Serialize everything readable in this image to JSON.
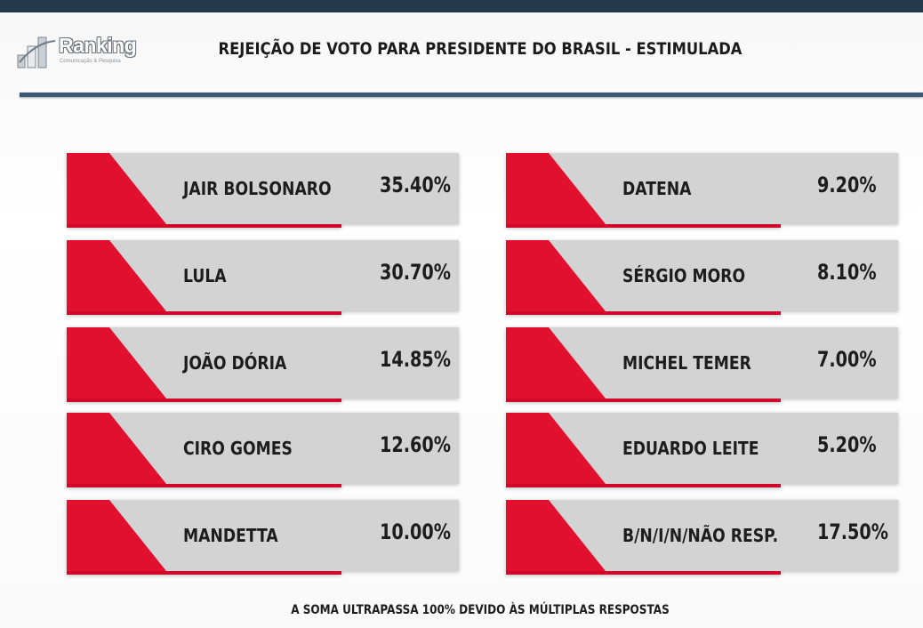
{
  "logo": {
    "name": "Ranking",
    "tagline": "Comunicação & Pesquisa"
  },
  "colors": {
    "accent_red": "#e2102f",
    "panel_gray": "#d3d3d3",
    "header_navy": "#24394a"
  },
  "chart_data": {
    "type": "table",
    "title": "REJEIÇÃO DE VOTO PARA PRESIDENTE DO BRASIL - ESTIMULADA",
    "note": "A SOMA ULTRAPASSA 100% DEVIDO ÀS MÚLTIPLAS RESPOSTAS",
    "columns": [
      [
        {
          "name": "JAIR BOLSONARO",
          "value": 35.4,
          "label": "35.40%"
        },
        {
          "name": "LULA",
          "value": 30.7,
          "label": "30.70%"
        },
        {
          "name": "JOÃO DÓRIA",
          "value": 14.85,
          "label": "14.85%"
        },
        {
          "name": "CIRO GOMES",
          "value": 12.6,
          "label": "12.60%"
        },
        {
          "name": "MANDETTA",
          "value": 10.0,
          "label": "10.00%"
        }
      ],
      [
        {
          "name": "DATENA",
          "value": 9.2,
          "label": "9.20%"
        },
        {
          "name": "SÉRGIO MORO",
          "value": 8.1,
          "label": "8.10%"
        },
        {
          "name": "MICHEL TEMER",
          "value": 7.0,
          "label": "7.00%"
        },
        {
          "name": "EDUARDO LEITE",
          "value": 5.2,
          "label": "5.20%"
        },
        {
          "name": "B/N/I/N/NÃO RESP.",
          "value": 17.5,
          "label": "17.50%"
        }
      ]
    ]
  }
}
